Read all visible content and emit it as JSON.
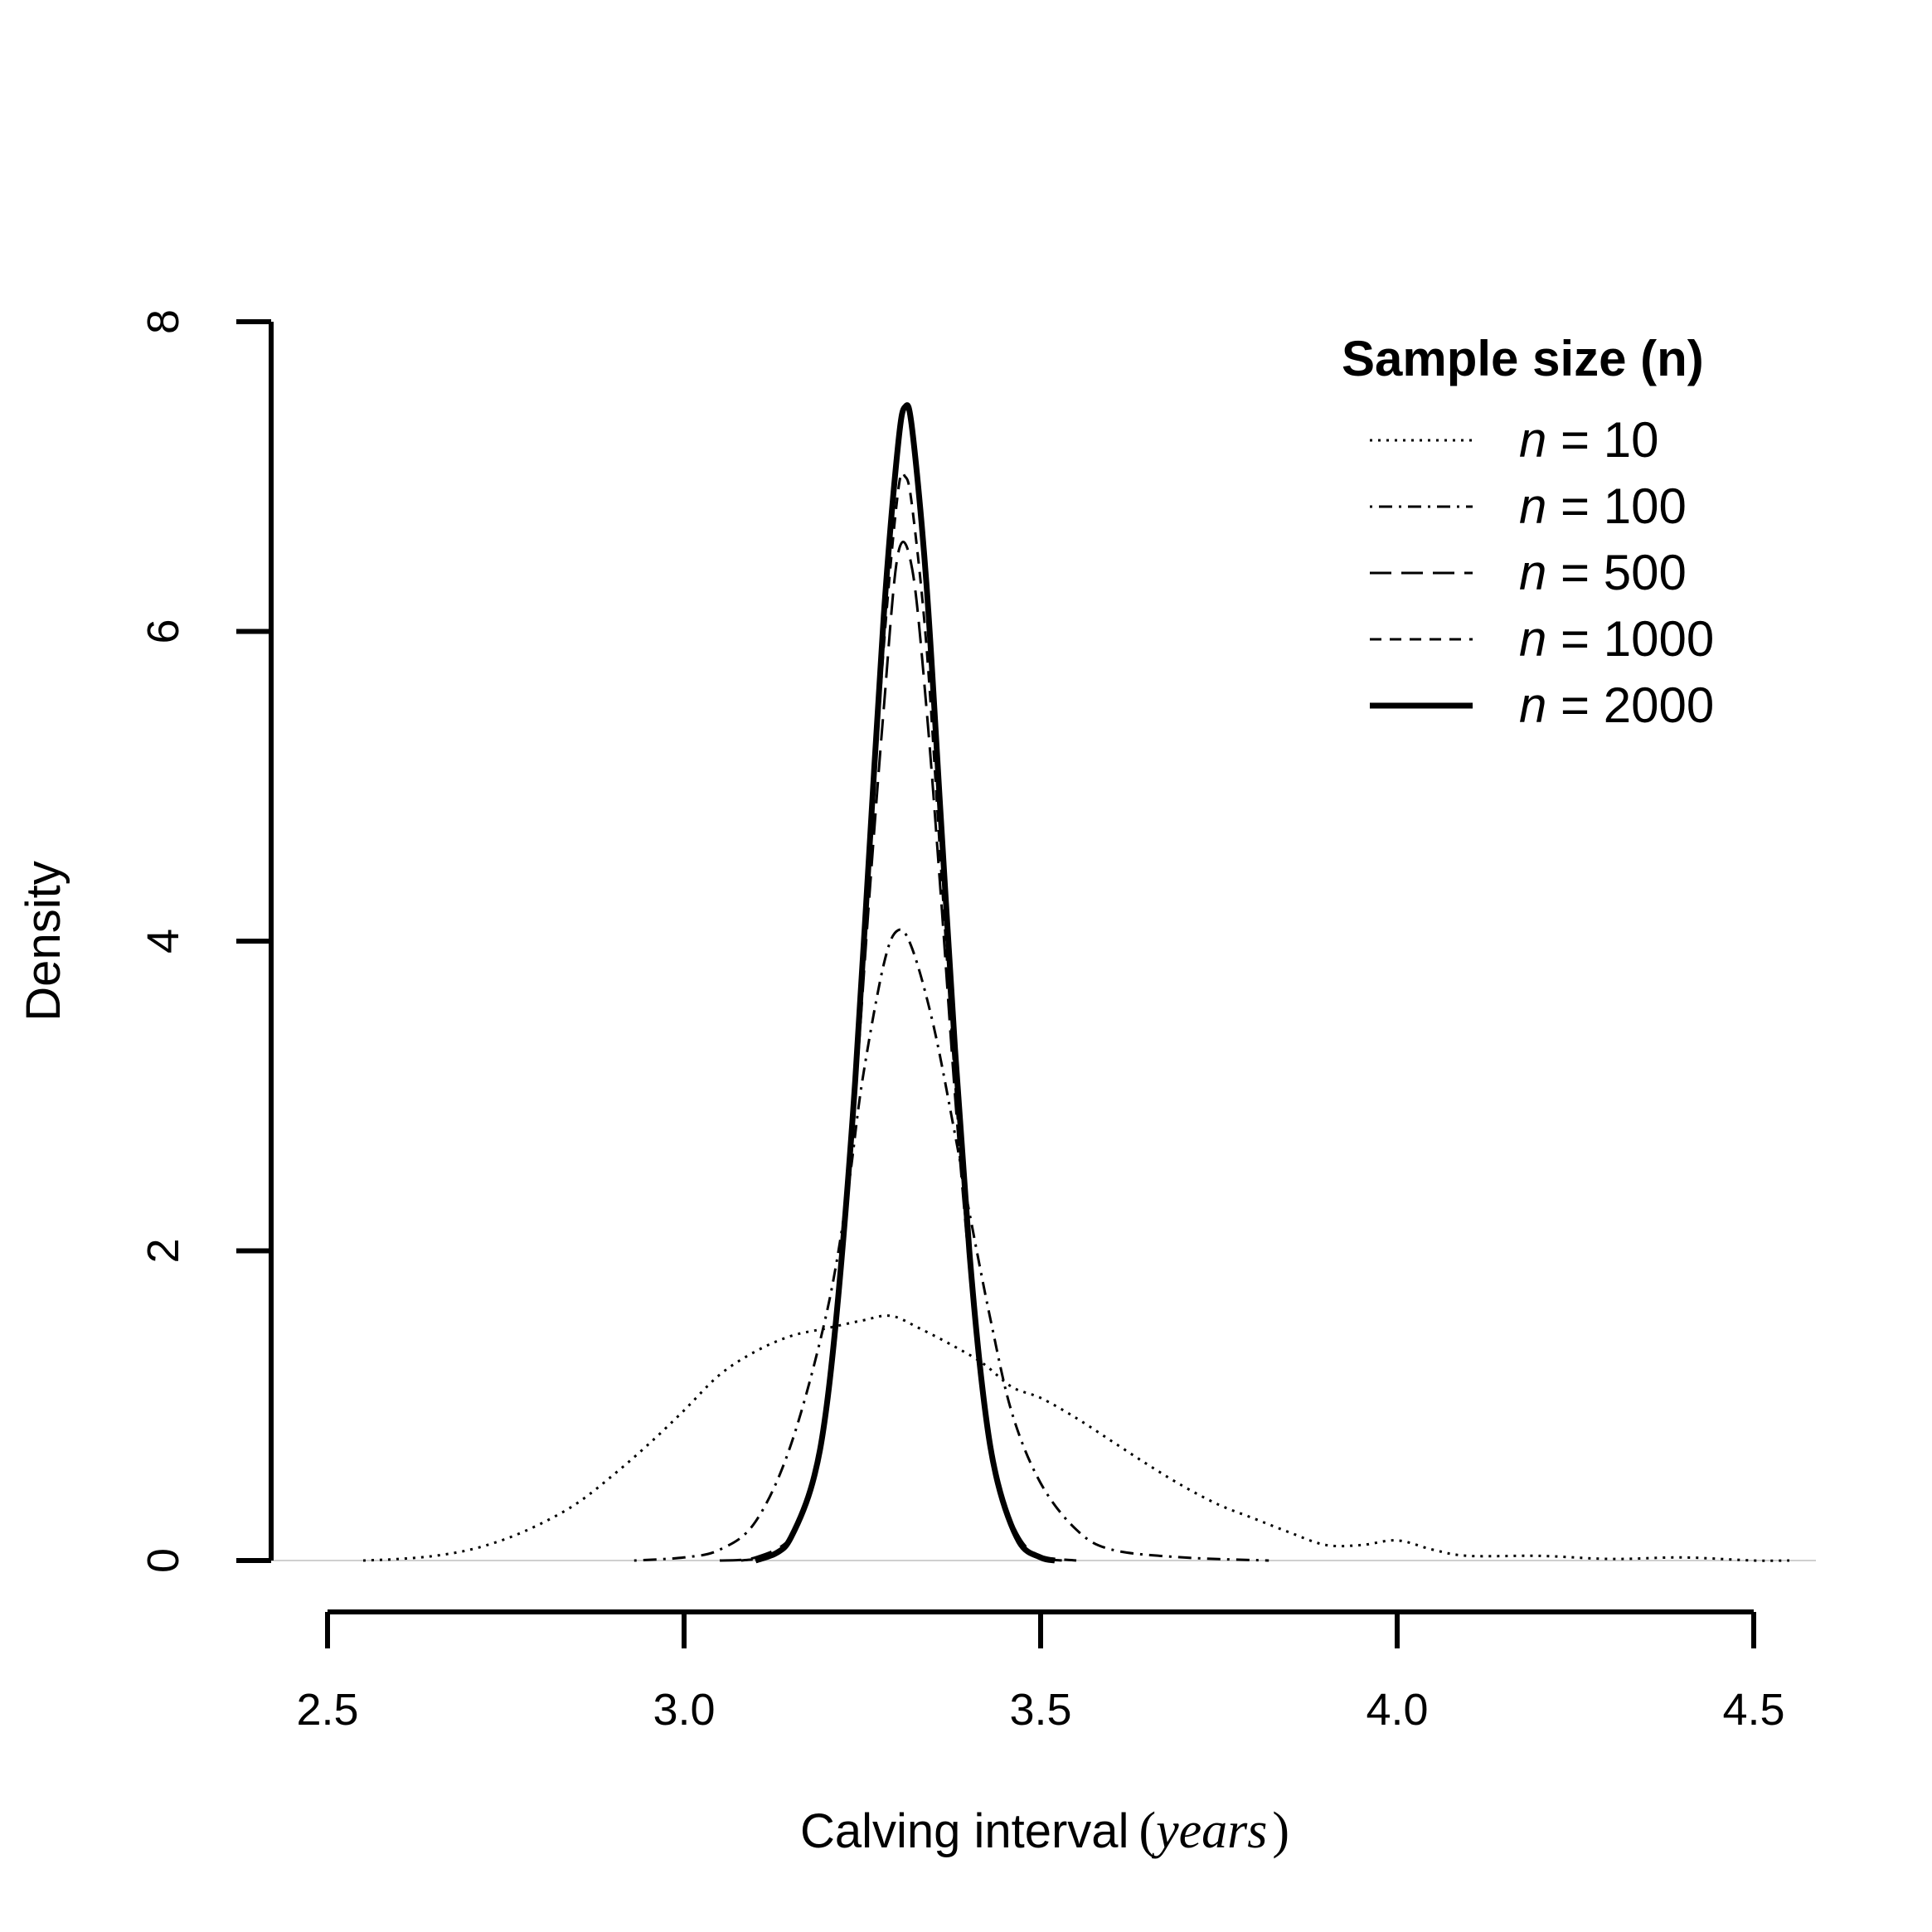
{
  "chart_data": {
    "type": "line",
    "title": "",
    "xlabel": "Calving interval",
    "xlabel_unit": "years",
    "ylabel": "Density",
    "xlim": [
      2.5,
      4.5
    ],
    "ylim": [
      0,
      8
    ],
    "x_ticks": [
      "2.5",
      "3.0",
      "3.5",
      "4.0",
      "4.5"
    ],
    "y_ticks": [
      "0",
      "2",
      "4",
      "6",
      "8"
    ],
    "grid": false,
    "legend": {
      "title": "Sample size (n)",
      "placement": "top-right"
    },
    "series": [
      {
        "name": "10",
        "style": "dotted",
        "points": [
          [
            2.55,
            0.0
          ],
          [
            2.6,
            0.01
          ],
          [
            2.65,
            0.03
          ],
          [
            2.7,
            0.07
          ],
          [
            2.75,
            0.14
          ],
          [
            2.8,
            0.24
          ],
          [
            2.85,
            0.37
          ],
          [
            2.9,
            0.55
          ],
          [
            2.95,
            0.75
          ],
          [
            3.0,
            0.97
          ],
          [
            3.05,
            1.2
          ],
          [
            3.1,
            1.35
          ],
          [
            3.15,
            1.45
          ],
          [
            3.2,
            1.5
          ],
          [
            3.25,
            1.55
          ],
          [
            3.29,
            1.58
          ],
          [
            3.33,
            1.5
          ],
          [
            3.38,
            1.38
          ],
          [
            3.42,
            1.27
          ],
          [
            3.46,
            1.12
          ],
          [
            3.5,
            1.05
          ],
          [
            3.55,
            0.92
          ],
          [
            3.6,
            0.77
          ],
          [
            3.65,
            0.62
          ],
          [
            3.7,
            0.48
          ],
          [
            3.75,
            0.36
          ],
          [
            3.8,
            0.27
          ],
          [
            3.85,
            0.18
          ],
          [
            3.9,
            0.1
          ],
          [
            3.95,
            0.1
          ],
          [
            4.0,
            0.13
          ],
          [
            4.05,
            0.07
          ],
          [
            4.1,
            0.03
          ],
          [
            4.2,
            0.03
          ],
          [
            4.3,
            0.01
          ],
          [
            4.4,
            0.02
          ],
          [
            4.5,
            0.0
          ],
          [
            4.55,
            0.0
          ]
        ]
      },
      {
        "name": "100",
        "style": "dotdash",
        "points": [
          [
            2.93,
            0.0
          ],
          [
            3.0,
            0.02
          ],
          [
            3.05,
            0.07
          ],
          [
            3.1,
            0.25
          ],
          [
            3.15,
            0.75
          ],
          [
            3.2,
            1.6
          ],
          [
            3.23,
            2.4
          ],
          [
            3.25,
            3.1
          ],
          [
            3.28,
            3.85
          ],
          [
            3.3,
            4.07
          ],
          [
            3.32,
            3.95
          ],
          [
            3.35,
            3.45
          ],
          [
            3.38,
            2.75
          ],
          [
            3.4,
            2.25
          ],
          [
            3.43,
            1.55
          ],
          [
            3.46,
            0.95
          ],
          [
            3.5,
            0.5
          ],
          [
            3.55,
            0.2
          ],
          [
            3.6,
            0.07
          ],
          [
            3.7,
            0.02
          ],
          [
            3.82,
            0.0
          ]
        ]
      },
      {
        "name": "500",
        "style": "longdash",
        "points": [
          [
            3.05,
            0.0
          ],
          [
            3.1,
            0.02
          ],
          [
            3.15,
            0.15
          ],
          [
            3.18,
            0.5
          ],
          [
            3.2,
            1.0
          ],
          [
            3.22,
            1.9
          ],
          [
            3.24,
            3.0
          ],
          [
            3.26,
            4.3
          ],
          [
            3.28,
            5.5
          ],
          [
            3.3,
            6.5
          ],
          [
            3.32,
            6.4
          ],
          [
            3.34,
            5.5
          ],
          [
            3.36,
            4.3
          ],
          [
            3.38,
            3.0
          ],
          [
            3.4,
            1.9
          ],
          [
            3.42,
            1.0
          ],
          [
            3.44,
            0.5
          ],
          [
            3.47,
            0.15
          ],
          [
            3.5,
            0.03
          ],
          [
            3.55,
            0.0
          ]
        ]
      },
      {
        "name": "1000",
        "style": "dashed",
        "points": [
          [
            3.08,
            0.0
          ],
          [
            3.12,
            0.03
          ],
          [
            3.15,
            0.15
          ],
          [
            3.18,
            0.5
          ],
          [
            3.2,
            1.0
          ],
          [
            3.22,
            1.9
          ],
          [
            3.24,
            3.1
          ],
          [
            3.26,
            4.5
          ],
          [
            3.28,
            5.9
          ],
          [
            3.3,
            6.9
          ],
          [
            3.31,
            7.0
          ],
          [
            3.32,
            6.8
          ],
          [
            3.34,
            5.9
          ],
          [
            3.36,
            4.5
          ],
          [
            3.38,
            3.1
          ],
          [
            3.4,
            1.9
          ],
          [
            3.42,
            1.0
          ],
          [
            3.44,
            0.5
          ],
          [
            3.47,
            0.12
          ],
          [
            3.5,
            0.02
          ],
          [
            3.53,
            0.0
          ]
        ]
      },
      {
        "name": "2000",
        "style": "solid",
        "points": [
          [
            3.1,
            0.0
          ],
          [
            3.13,
            0.05
          ],
          [
            3.15,
            0.15
          ],
          [
            3.18,
            0.5
          ],
          [
            3.2,
            1.0
          ],
          [
            3.22,
            1.9
          ],
          [
            3.24,
            3.1
          ],
          [
            3.26,
            4.6
          ],
          [
            3.28,
            6.1
          ],
          [
            3.3,
            7.2
          ],
          [
            3.31,
            7.45
          ],
          [
            3.32,
            7.3
          ],
          [
            3.34,
            6.3
          ],
          [
            3.36,
            4.8
          ],
          [
            3.38,
            3.3
          ],
          [
            3.4,
            2.0
          ],
          [
            3.42,
            1.05
          ],
          [
            3.44,
            0.5
          ],
          [
            3.47,
            0.12
          ],
          [
            3.5,
            0.02
          ],
          [
            3.52,
            0.0
          ]
        ]
      }
    ]
  }
}
